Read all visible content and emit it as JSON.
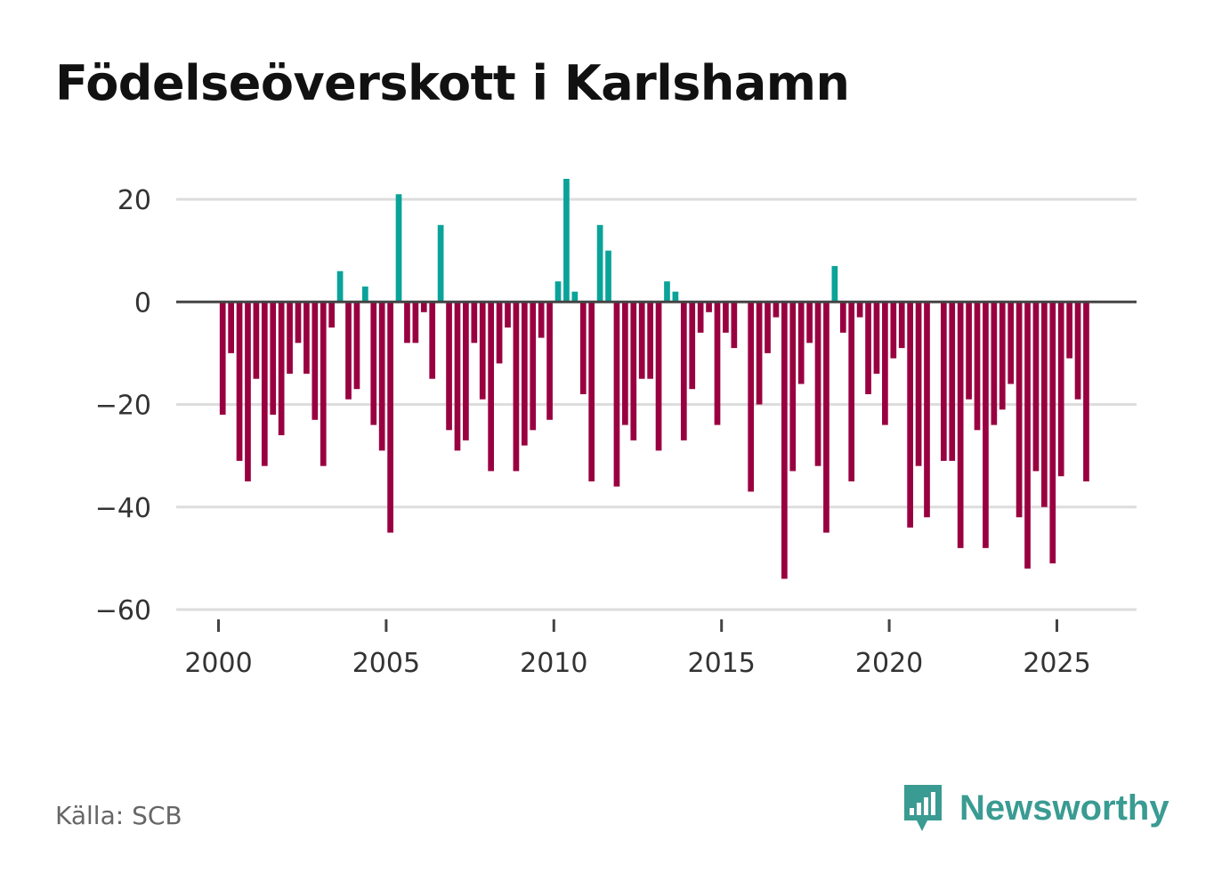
{
  "title": "Födelseöverskott i Karlshamn",
  "source": "Källa: SCB",
  "brand": {
    "name": "Newsworthy",
    "icon": "newsworthy-logo-icon"
  },
  "colors": {
    "positive": "#0aa39a",
    "negative": "#990040",
    "grid": "#dddddd",
    "zero": "#444444",
    "brand": "#3a9b92"
  },
  "chart_data": {
    "type": "bar",
    "title": "Födelseöverskott i Karlshamn",
    "xlabel": "",
    "ylabel": "",
    "x_ticks": [
      2000,
      2005,
      2010,
      2015,
      2020,
      2025
    ],
    "x_tick_labels": [
      "2000",
      "2005",
      "2010",
      "2015",
      "2020",
      "2025"
    ],
    "y_ticks": [
      20,
      0,
      -20,
      -40,
      -60
    ],
    "y_tick_labels": [
      "20",
      "0",
      "−20",
      "−40",
      "−60"
    ],
    "ylim": [
      -60,
      20
    ],
    "grid": true,
    "frequency": "quarterly",
    "start": 2000.125,
    "step": 0.25,
    "values": [
      -22,
      -10,
      -31,
      -35,
      -15,
      -32,
      -22,
      -26,
      -14,
      -8,
      -14,
      -23,
      -32,
      -5,
      6,
      -19,
      -17,
      3,
      -24,
      -29,
      -45,
      21,
      -8,
      -8,
      -2,
      -15,
      15,
      -25,
      -29,
      -27,
      -8,
      -19,
      -33,
      -12,
      -5,
      -33,
      -28,
      -25,
      -7,
      -23,
      4,
      24,
      2,
      -18,
      -35,
      15,
      10,
      -36,
      -24,
      -27,
      -15,
      -15,
      -29,
      4,
      2,
      -27,
      -17,
      -6,
      -2,
      -24,
      -6,
      -9,
      0,
      -37,
      -20,
      -10,
      -3,
      -54,
      -33,
      -16,
      -8,
      -32,
      -45,
      7,
      -6,
      -35,
      -3,
      -18,
      -14,
      -24,
      -11,
      -9,
      -44,
      -32,
      -42,
      0,
      -31,
      -31,
      -48,
      -19,
      -25,
      -48,
      -24,
      -21,
      -16,
      -42,
      -52,
      -33,
      -40,
      -51,
      -34,
      -11,
      -19,
      -35
    ]
  }
}
